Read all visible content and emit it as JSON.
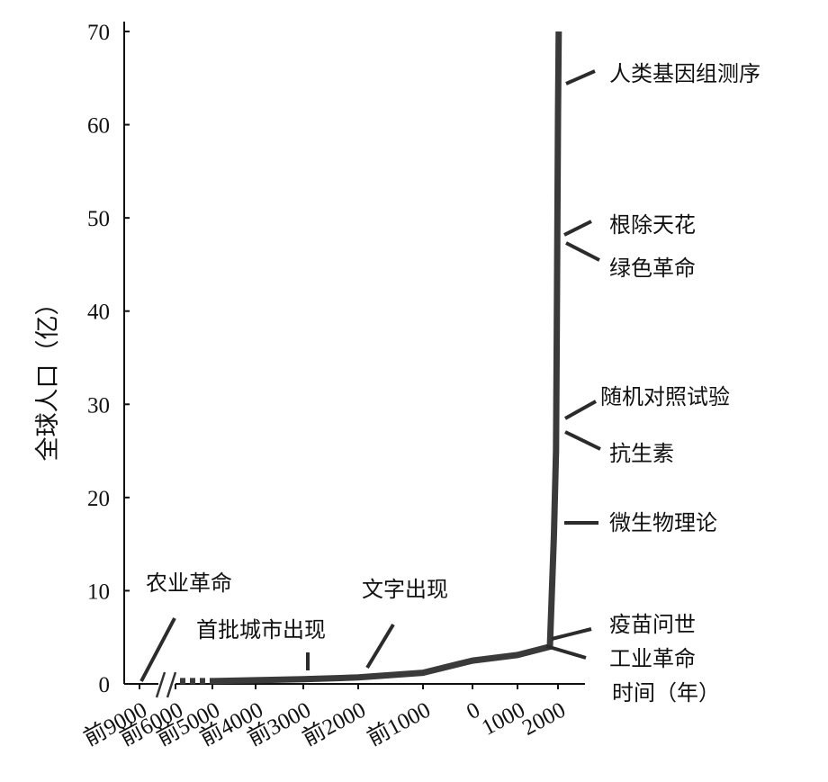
{
  "chart_data": {
    "type": "line",
    "title": "",
    "ylabel": "全球人口（亿）",
    "xlabel": "时间（年）",
    "ylim": [
      0,
      70
    ],
    "y_ticks": [
      "0",
      "10",
      "20",
      "30",
      "40",
      "50",
      "60",
      "70"
    ],
    "x_tick_labels": [
      "前9000",
      "前6000",
      "前5000",
      "前4000",
      "前3000",
      "前2000",
      "前1000",
      "0",
      "1000",
      "2000"
    ],
    "x_axis_break": "between 前9000 and 前6000",
    "grid": false,
    "series": [
      {
        "x": [
          -5000,
          -4000,
          -3000,
          -2000,
          -1000,
          0,
          1000,
          1800,
          1900,
          1950,
          1970,
          2000,
          2010
        ],
        "y": [
          0.3,
          0.4,
          0.5,
          0.7,
          1.2,
          2.5,
          3.1,
          4.0,
          16,
          25,
          37,
          61,
          70
        ]
      }
    ],
    "series_dotted_start": {
      "x": [
        -6000,
        -5000
      ],
      "y": [
        0.3,
        0.3
      ]
    },
    "annotations": [
      "农业革命",
      "首批城市出现",
      "文字出现",
      "工业革命",
      "疫苗问世",
      "微生物理论",
      "抗生素",
      "随机对照试验",
      "绿色革命",
      "根除天花",
      "人类基因组测序"
    ]
  }
}
